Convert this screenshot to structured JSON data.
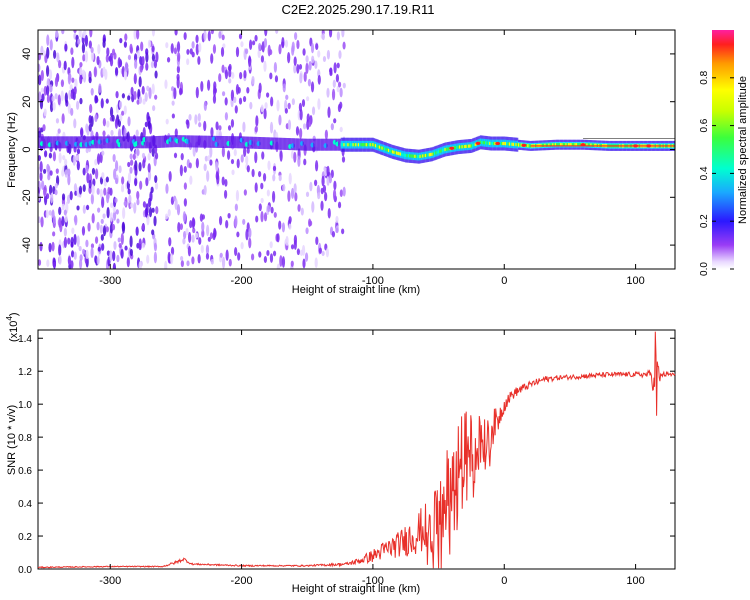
{
  "title": "C2E2.2025.290.17.19.R11",
  "chart_data": [
    {
      "type": "heatmap",
      "name": "spectrogram",
      "xlabel": "Height of straight line (km)",
      "ylabel": "Frequency (Hz)",
      "xlim": [
        -355,
        130
      ],
      "ylim": [
        -50,
        50
      ],
      "xticks": [
        -300,
        -200,
        -100,
        0,
        100
      ],
      "yticks": [
        -40,
        -20,
        0,
        20,
        40
      ],
      "colorbar": {
        "label": "Normalized spectral amplitude",
        "range": [
          0,
          1
        ],
        "ticks": [
          0.0,
          0.2,
          0.4,
          0.6,
          0.8
        ]
      },
      "center_line": {
        "x": [
          -355,
          -270,
          -250,
          -200,
          -150,
          -120,
          -100,
          -85,
          -75,
          -65,
          -55,
          -45,
          -35,
          -25,
          -18,
          -10,
          0,
          20,
          40,
          60,
          80,
          100,
          130
        ],
        "freq": [
          3,
          3,
          3.5,
          3,
          2,
          2,
          2,
          -1,
          -2.5,
          -3,
          -2,
          0,
          1,
          1.5,
          3,
          2.5,
          2.5,
          1.5,
          2,
          2,
          1.5,
          1.5,
          1.5
        ]
      },
      "regions": [
        {
          "from": -355,
          "to": -265,
          "noise": "dense"
        },
        {
          "from": -265,
          "to": -258,
          "noise": "gap"
        },
        {
          "from": -258,
          "to": -122,
          "noise": "moderate"
        },
        {
          "from": -122,
          "to": 130,
          "noise": "none"
        }
      ]
    },
    {
      "type": "line",
      "name": "snr",
      "xlabel": "Height of straight line (km)",
      "ylabel": "SNR (10 * v/v)",
      "y_multiplier": "(x10",
      "y_multiplier_exp": "4",
      "y_multiplier_close": ")",
      "xlim": [
        -355,
        130
      ],
      "ylim": [
        0,
        1.45
      ],
      "xticks": [
        -300,
        -200,
        -100,
        0,
        100
      ],
      "yticks": [
        0.0,
        0.2,
        0.4,
        0.6,
        0.8,
        1.0,
        1.2,
        1.4
      ],
      "series": [
        {
          "name": "SNR",
          "color": "#e8302a",
          "x": [
            -355,
            -300,
            -260,
            -250,
            -244,
            -238,
            -200,
            -150,
            -120,
            -110,
            -100,
            -90,
            -80,
            -70,
            -60,
            -50,
            -45,
            -40,
            -35,
            -30,
            -25,
            -20,
            -15,
            -10,
            -5,
            0,
            5,
            10,
            20,
            30,
            40,
            60,
            80,
            100,
            108,
            112,
            114,
            116,
            118,
            120,
            130
          ],
          "y": [
            0.01,
            0.015,
            0.015,
            0.04,
            0.06,
            0.03,
            0.02,
            0.02,
            0.03,
            0.05,
            0.08,
            0.12,
            0.15,
            0.2,
            0.25,
            0.3,
            0.45,
            0.55,
            0.65,
            0.75,
            0.75,
            0.8,
            0.82,
            0.85,
            0.9,
            1.0,
            1.05,
            1.08,
            1.12,
            1.15,
            1.16,
            1.17,
            1.18,
            1.18,
            1.18,
            1.18,
            1.1,
            1.3,
            1.15,
            1.18,
            1.18
          ],
          "noise_amp": [
            0.003,
            0.003,
            0.003,
            0.01,
            0.01,
            0.005,
            0.004,
            0.004,
            0.01,
            0.02,
            0.04,
            0.06,
            0.08,
            0.12,
            0.15,
            0.2,
            0.25,
            0.25,
            0.25,
            0.22,
            0.2,
            0.18,
            0.15,
            0.12,
            0.08,
            0.05,
            0.03,
            0.03,
            0.02,
            0.02,
            0.015,
            0.015,
            0.015,
            0.015,
            0.02,
            0.03,
            0.08,
            0.08,
            0.04,
            0.015,
            0.015
          ],
          "spikes": [
            {
              "x": 115,
              "y": 1.44
            },
            {
              "x": 116,
              "y": 0.93
            }
          ]
        }
      ]
    }
  ]
}
